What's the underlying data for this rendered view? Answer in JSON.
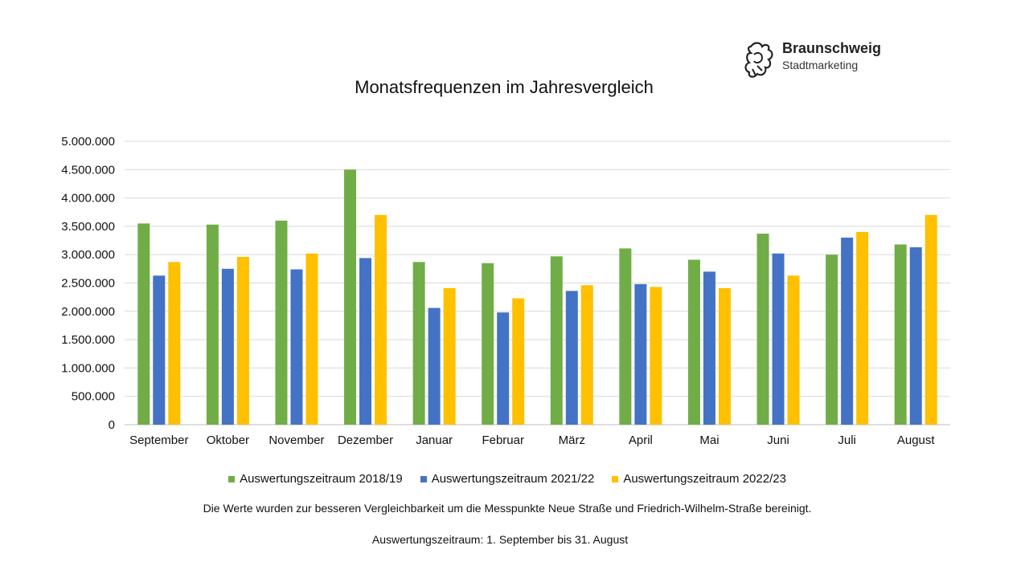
{
  "logo": {
    "name": "Braunschweig",
    "subtitle": "Stadtmarketing",
    "icon": "lion-icon"
  },
  "chart_data": {
    "type": "bar",
    "title": "Monatsfrequenzen im Jahresvergleich",
    "xlabel": "",
    "ylabel": "",
    "ylim": [
      0,
      5000000
    ],
    "y_ticks": [
      0,
      500000,
      1000000,
      1500000,
      2000000,
      2500000,
      3000000,
      3500000,
      4000000,
      4500000,
      5000000
    ],
    "y_tick_labels": [
      "0",
      "500.000",
      "1.000.000",
      "1.500.000",
      "2.000.000",
      "2.500.000",
      "3.000.000",
      "3.500.000",
      "4.000.000",
      "4.500.000",
      "5.000.000"
    ],
    "grid": true,
    "legend_position": "bottom",
    "categories": [
      "September",
      "Oktober",
      "November",
      "Dezember",
      "Januar",
      "Februar",
      "März",
      "April",
      "Mai",
      "Juni",
      "Juli",
      "August"
    ],
    "series": [
      {
        "name": "Auswertungszeitraum 2018/19",
        "color": "#70ad47",
        "values": [
          3550000,
          3530000,
          3600000,
          4500000,
          2870000,
          2850000,
          2970000,
          3110000,
          2910000,
          3370000,
          3000000,
          3180000
        ]
      },
      {
        "name": "Auswertungszeitraum 2021/22",
        "color": "#4472c4",
        "values": [
          2630000,
          2750000,
          2740000,
          2940000,
          2060000,
          1980000,
          2360000,
          2480000,
          2700000,
          3020000,
          3300000,
          3130000
        ]
      },
      {
        "name": "Auswertungszeitraum 2022/23",
        "color": "#ffc000",
        "values": [
          2870000,
          2960000,
          3020000,
          3700000,
          2410000,
          2230000,
          2460000,
          2430000,
          2410000,
          2630000,
          3400000,
          3700000
        ]
      }
    ]
  },
  "footnote": "Die Werte wurden zur besseren Vergleichbarkeit um die Messpunkte Neue Straße und Friedrich-Wilhelm-Straße  bereinigt.",
  "period": "Auswertungszeitraum:  1. September bis 31. August"
}
